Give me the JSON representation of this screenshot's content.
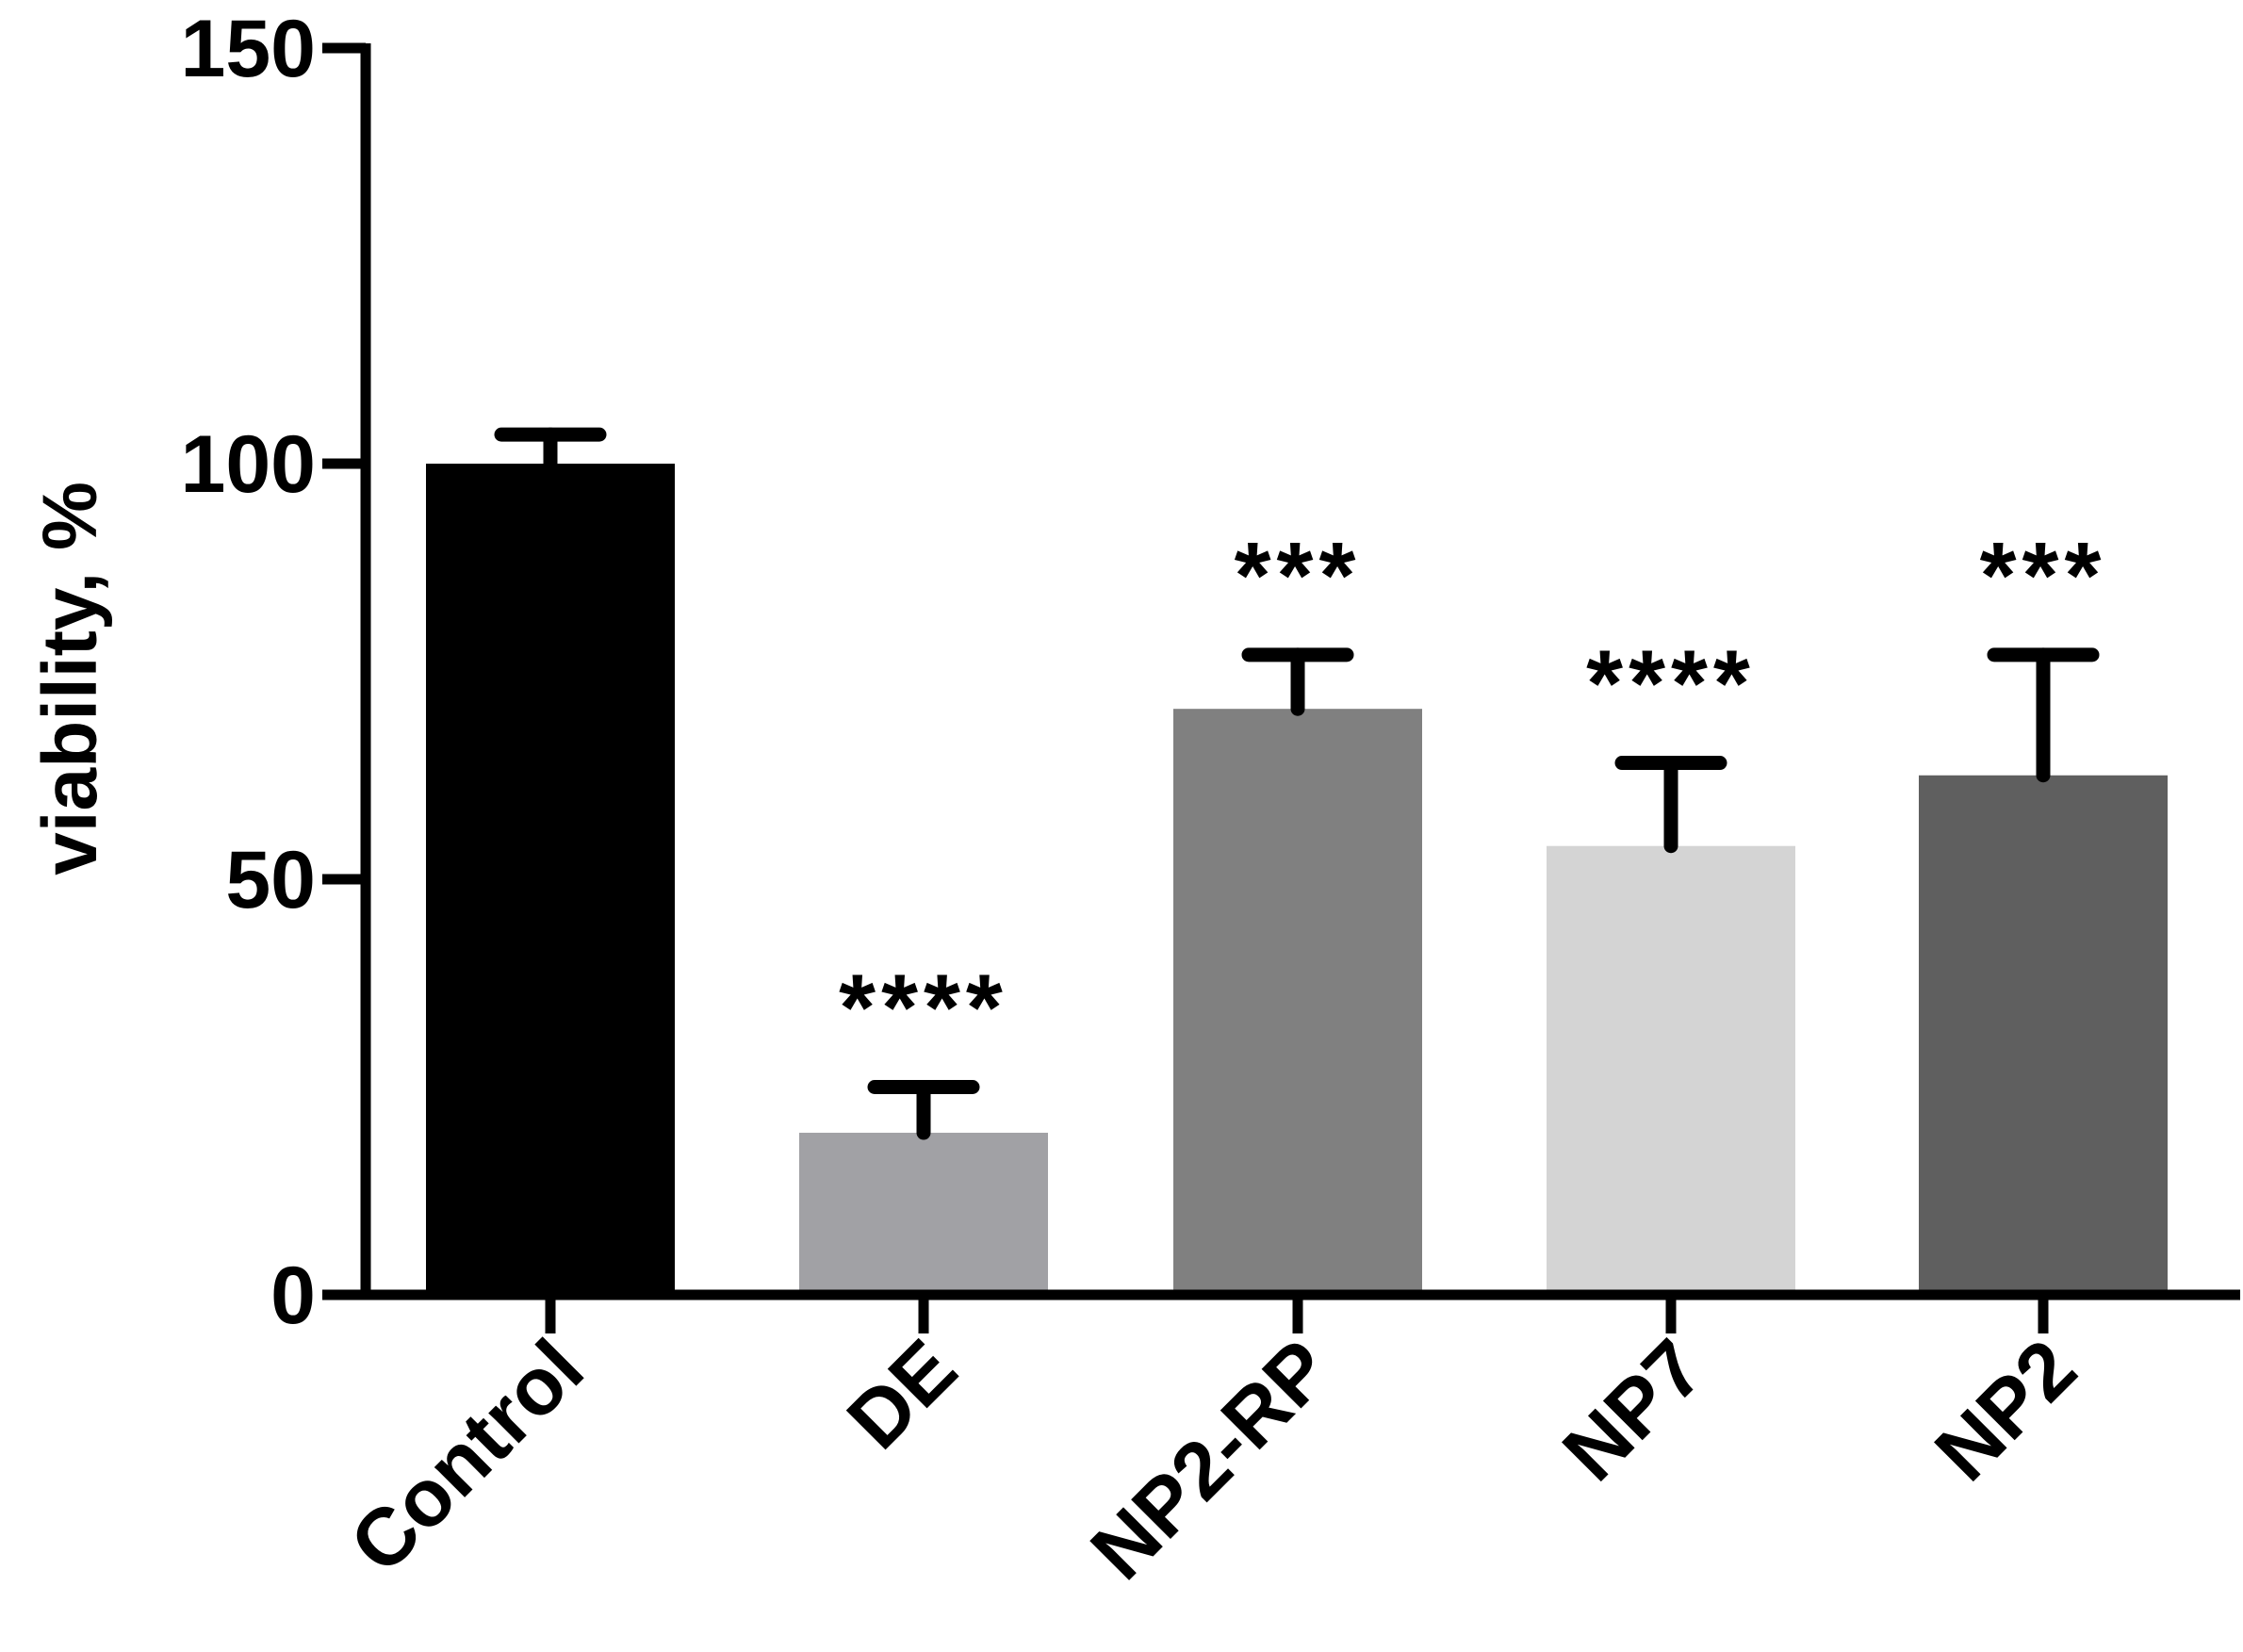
{
  "chart_data": {
    "type": "bar",
    "title": "",
    "xlabel": "",
    "ylabel": "viability, %",
    "ylim": [
      0,
      150
    ],
    "yticks": [
      0,
      50,
      100,
      150
    ],
    "grid": false,
    "categories": [
      "Control",
      "DE",
      "NP2-RP",
      "NP7",
      "NP2"
    ],
    "values": [
      100,
      19.5,
      70.5,
      54,
      62.5
    ],
    "errors": [
      3.5,
      5.5,
      6.5,
      10,
      14.5
    ],
    "colors": [
      "#000000",
      "#a1a1a5",
      "#808080",
      "#d4d4d4",
      "#5f5f5f"
    ],
    "significance": [
      "",
      "****",
      "***",
      "****",
      "***"
    ]
  }
}
